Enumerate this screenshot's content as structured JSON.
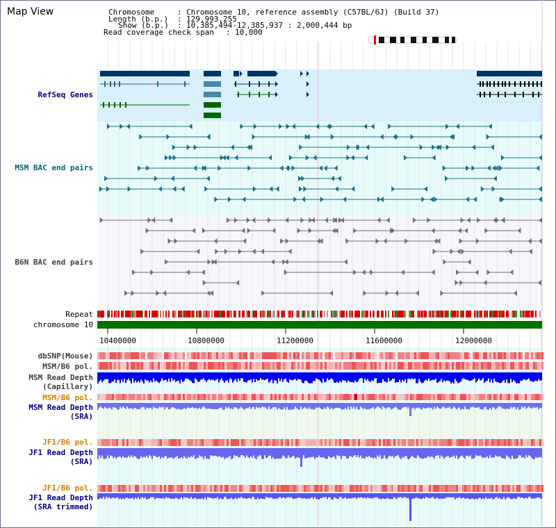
{
  "header": {
    "title": "Map View",
    "chromosome_key": "Chromosome",
    "chromosome_value": "Chromosome 10, reference assembly (C57BL/6J) (Build 37)",
    "length_key": "Length (b.p.)",
    "length_value": "129,993,255",
    "show_key": "Show (b.p.)",
    "show_value": "10,385,494-12,385,937 : 2,000,444 bp",
    "coverage_key": "Read coverage check span",
    "coverage_value": "10,000"
  },
  "tracks": {
    "refseq": "RefSeq Genes",
    "msm_bac": "MSM BAC end pairs",
    "b6n_bac": "B6N BAC end pairs",
    "repeat": "Repeat",
    "chromosome": "chromosome 10",
    "dbsnp": "dbSNP(Mouse)",
    "msm_b6_pol_1": "MSM/B6 pol.",
    "msm_depth_cap_1": "MSM Read Depth",
    "msm_depth_cap_2": "(Capillary)",
    "msm_b6_pol_2": "MSM/B6 pol.",
    "msm_depth_sra_1": "MSM Read Depth",
    "msm_depth_sra_2": "(SRA)",
    "jf1_b6_pol_1": "JF1/B6 pol.",
    "jf1_depth_sra_1": "JF1 Read Depth",
    "jf1_depth_sra_2": "(SRA)",
    "jf1_b6_pol_2": "JF1/B6 pol.",
    "jf1_depth_trim_1": "JF1 Read Depth",
    "jf1_depth_trim_2": "(SRA trimmed)"
  },
  "axis": {
    "ticks": [
      "10400000",
      "10800000",
      "11200000",
      "11600000",
      "12000000"
    ]
  },
  "colors": {
    "label_navy": "#000080",
    "label_teal": "#006080",
    "label_gray": "#404040",
    "label_orange": "#d08000",
    "refseq_bg": "#d8f0fa",
    "msm_bac_bg": "#e8fbfb",
    "b6n_bac_bg": "#f6f6fb",
    "chromosome_green": "#007000",
    "depth_cap_blue": "#0000ee",
    "depth_sra_blue": "#7070ee",
    "depth_trim_blue": "#5555ee"
  }
}
